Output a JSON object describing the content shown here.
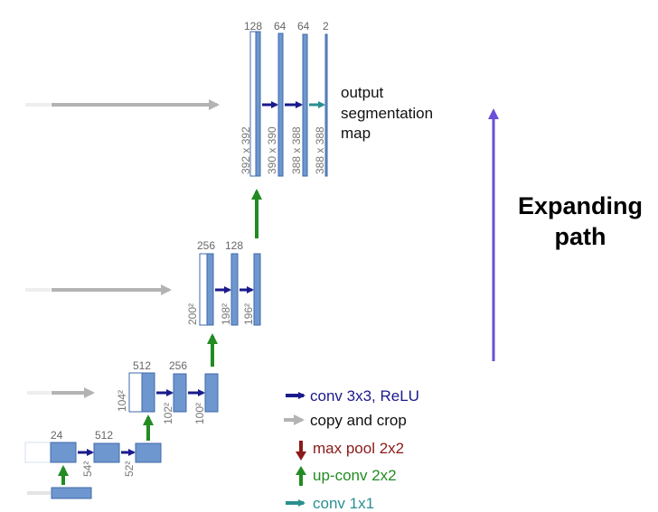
{
  "colors": {
    "block_fill": "#6f97cf",
    "block_stroke": "#3d6aa8",
    "conv": "#1a1a8c",
    "copy": "#b3b3b3",
    "maxpool": "#8b1a1a",
    "upconv": "#228b22",
    "conv1x1": "#2a8f8f",
    "expanding": "#6a4fd8"
  },
  "top_level": {
    "channels": [
      "128",
      "64",
      "64",
      "2"
    ],
    "dims": [
      "392 x 392",
      "390 x 390",
      "388 x 388",
      "388 x 388"
    ],
    "output_label": [
      "output",
      "segmentation",
      "map"
    ]
  },
  "level2": {
    "channels": [
      "256",
      "128"
    ],
    "dims": [
      "200²",
      "198²",
      "196²"
    ]
  },
  "level3": {
    "channels": [
      "512",
      "256"
    ],
    "dims": [
      "104²",
      "102²",
      "100²"
    ]
  },
  "level4": {
    "channels": [
      "24",
      "512"
    ],
    "dims": [
      "54²",
      "52²"
    ]
  },
  "expanding_path": [
    "Expanding",
    "path"
  ],
  "legend": {
    "conv": "conv 3x3, ReLU",
    "copy": "copy and crop",
    "maxpool": "max pool 2x2",
    "upconv": "up-conv 2x2",
    "conv1x1": "conv 1x1"
  }
}
